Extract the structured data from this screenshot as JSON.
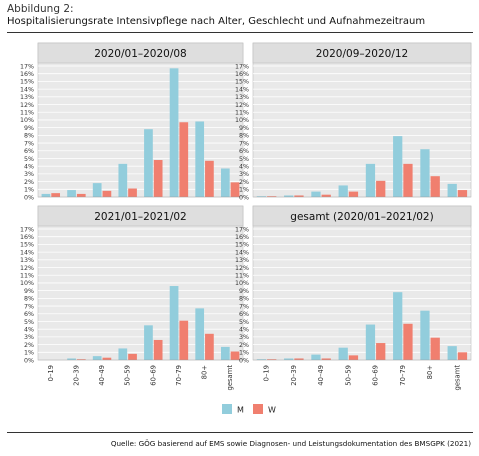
{
  "figure": {
    "label": "Abbildung 2:",
    "title": "Hospitalisierungsrate Intensivpflege nach Alter, Geschlecht und Aufnahmezeitraum",
    "source": "Quelle: GÖG basierend auf EMS sowie Diagnosen- und Leistungsdokumentation des BMSGPK (2021)"
  },
  "colors": {
    "M": "#92cddc",
    "W": "#f07f6f",
    "panel_bg": "#e9e9e9",
    "grid": "#ffffff"
  },
  "y_ticks": [
    "0%",
    "1%",
    "2%",
    "3%",
    "4%",
    "5%",
    "6%",
    "7%",
    "8%",
    "9%",
    "10%",
    "11%",
    "12%",
    "13%",
    "14%",
    "15%",
    "16%",
    "17%"
  ],
  "legend": [
    {
      "key": "M",
      "label": "M"
    },
    {
      "key": "W",
      "label": "W"
    }
  ],
  "chart_data": [
    {
      "type": "bar",
      "title": "2020/01–2020/08",
      "categories": [
        "0–19",
        "20–39",
        "40–49",
        "50–59",
        "60–69",
        "70–79",
        "80+",
        "gesamt"
      ],
      "ylim": [
        0,
        17
      ],
      "series": [
        {
          "name": "M",
          "values": [
            0.4,
            0.9,
            1.8,
            4.3,
            8.8,
            16.7,
            9.8,
            3.7
          ]
        },
        {
          "name": "W",
          "values": [
            0.5,
            0.4,
            0.8,
            1.1,
            4.8,
            9.7,
            4.7,
            1.9
          ]
        }
      ]
    },
    {
      "type": "bar",
      "title": "2020/09–2020/12",
      "categories": [
        "0–19",
        "20–39",
        "40–49",
        "50–59",
        "60–69",
        "70–79",
        "80+",
        "gesamt"
      ],
      "ylim": [
        0,
        17
      ],
      "series": [
        {
          "name": "M",
          "values": [
            0.1,
            0.2,
            0.7,
            1.5,
            4.3,
            7.9,
            6.2,
            1.7
          ]
        },
        {
          "name": "W",
          "values": [
            0.1,
            0.2,
            0.3,
            0.7,
            2.1,
            4.3,
            2.7,
            0.9
          ]
        }
      ]
    },
    {
      "type": "bar",
      "title": "2021/01–2021/02",
      "categories": [
        "0–19",
        "20–39",
        "40–49",
        "50–59",
        "60–69",
        "70–79",
        "80+",
        "gesamt"
      ],
      "ylim": [
        0,
        17
      ],
      "series": [
        {
          "name": "M",
          "values": [
            0.0,
            0.2,
            0.5,
            1.5,
            4.5,
            9.6,
            6.7,
            1.7
          ]
        },
        {
          "name": "W",
          "values": [
            0.0,
            0.1,
            0.3,
            0.8,
            2.6,
            5.1,
            3.4,
            1.1
          ]
        }
      ]
    },
    {
      "type": "bar",
      "title": "gesamt (2020/01–2021/02)",
      "categories": [
        "0–19",
        "20–39",
        "40–49",
        "50–59",
        "60–69",
        "70–79",
        "80+",
        "gesamt"
      ],
      "ylim": [
        0,
        17
      ],
      "series": [
        {
          "name": "M",
          "values": [
            0.1,
            0.2,
            0.7,
            1.6,
            4.6,
            8.8,
            6.4,
            1.8
          ]
        },
        {
          "name": "W",
          "values": [
            0.1,
            0.2,
            0.2,
            0.6,
            2.2,
            4.7,
            2.9,
            1.0
          ]
        }
      ]
    }
  ]
}
